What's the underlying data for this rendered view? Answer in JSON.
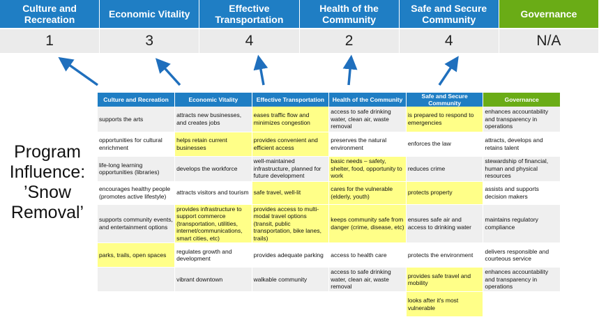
{
  "colors": {
    "header_blue": "#1f7ec4",
    "governance_green": "#6aac16",
    "highlight": "#ffff88",
    "arrow": "#1f6fbd"
  },
  "top": {
    "columns": [
      {
        "label": "Culture and Recreation",
        "score": "1"
      },
      {
        "label": "Economic Vitality",
        "score": "3"
      },
      {
        "label": "Effective Transportation",
        "score": "4"
      },
      {
        "label": "Health of the Community",
        "score": "2"
      },
      {
        "label": "Safe and Secure Community",
        "score": "4"
      },
      {
        "label": "Governance",
        "score": "N/A"
      }
    ]
  },
  "program_label": "Program Influence: ’Snow Removal’",
  "table": {
    "headers": [
      "Culture and Recreation",
      "Economic Vitality",
      "Effective Transportation",
      "Health of the Community",
      "Safe and Secure Community",
      "Governance"
    ],
    "rows": [
      [
        {
          "t": "supports the arts"
        },
        {
          "t": "attracts new businesses, and creates jobs"
        },
        {
          "t": "eases traffic flow and minimizes congestion",
          "h": true
        },
        {
          "t": "access to safe drinking water, clean air, waste removal"
        },
        {
          "t": "is prepared to respond to emergencies",
          "h": true
        },
        {
          "t": "enhances accountability and transparency in operations"
        }
      ],
      [
        {
          "t": "opportunities for cultural enrichment"
        },
        {
          "t": "helps retain current businesses",
          "h": true
        },
        {
          "t": "provides convenient and efficient access",
          "h": true
        },
        {
          "t": "preserves the natural environment"
        },
        {
          "t": "enforces the law"
        },
        {
          "t": "attracts, develops and retains talent"
        }
      ],
      [
        {
          "t": "life-long learning opportunities (libraries)"
        },
        {
          "t": "develops the workforce"
        },
        {
          "t": "well-maintained infrastructure, planned for future development"
        },
        {
          "t": "basic needs – safety, shelter, food, opportunity to work",
          "h": true
        },
        {
          "t": "reduces crime"
        },
        {
          "t": "stewardship of financial, human and physical resources"
        }
      ],
      [
        {
          "t": "encourages healthy people (promotes active lifestyle)"
        },
        {
          "t": "attracts visitors and tourism"
        },
        {
          "t": "safe travel, well-lit",
          "h": true
        },
        {
          "t": "cares for the vulnerable (elderly, youth)",
          "h": true
        },
        {
          "t": "protects property",
          "h": true
        },
        {
          "t": "assists and supports decision makers"
        }
      ],
      [
        {
          "t": "supports community events, and entertainment options"
        },
        {
          "t": "provides infrastructure to support commerce (transportation, utilities, internet/communications, smart cities, etc)",
          "h": true
        },
        {
          "t": "provides access to multi-modal travel options (transit, public transportation, bike lanes, trails)",
          "h": true
        },
        {
          "t": "keeps community safe from danger (crime, disease, etc)",
          "h": true
        },
        {
          "t": "ensures safe air and access to drinking water"
        },
        {
          "t": "maintains regulatory compliance"
        }
      ],
      [
        {
          "t": "parks, trails, open spaces",
          "h": true
        },
        {
          "t": "regulates growth and development"
        },
        {
          "t": "provides adequate parking"
        },
        {
          "t": "access to health care"
        },
        {
          "t": "protects the environment"
        },
        {
          "t": "delivers responsible and courteous service"
        }
      ],
      [
        {
          "t": ""
        },
        {
          "t": "vibrant downtown"
        },
        {
          "t": "walkable community"
        },
        {
          "t": "access to safe drinking water, clean air, waste removal"
        },
        {
          "t": "provides safe travel and mobility",
          "h": true
        },
        {
          "t": "enhances accountability and transparency in operations"
        }
      ],
      [
        {
          "t": ""
        },
        {
          "t": ""
        },
        {
          "t": ""
        },
        {
          "t": ""
        },
        {
          "t": "looks after it's most vulnerable",
          "h": true
        },
        {
          "t": ""
        }
      ]
    ]
  }
}
